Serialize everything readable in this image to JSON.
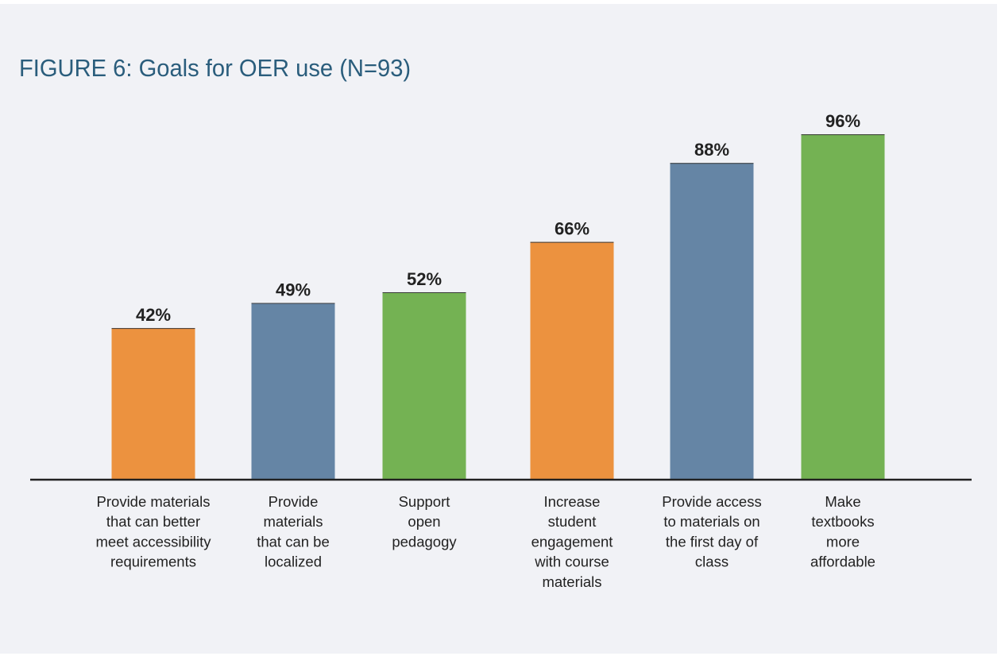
{
  "chart_data": {
    "type": "bar",
    "title": "FIGURE 6: Goals for OER use (N=93)",
    "categories": [
      [
        "Provide materials",
        "that can better",
        "meet accessibility",
        "requirements"
      ],
      [
        "Provide",
        "materials",
        "that can be",
        "localized"
      ],
      [
        "Support",
        "open",
        "pedagogy"
      ],
      [
        "Increase",
        "student",
        "engagement",
        "with course",
        "materials"
      ],
      [
        "Provide access",
        "to materials on",
        "the first day of",
        "class"
      ],
      [
        "Make",
        "textbooks",
        "more",
        "affordable"
      ]
    ],
    "values": [
      42,
      49,
      52,
      66,
      88,
      96
    ],
    "value_labels": [
      "42%",
      "49%",
      "52%",
      "66%",
      "88%",
      "96%"
    ],
    "bar_colors": [
      "#ec923f",
      "#6585a5",
      "#74b253",
      "#ec923f",
      "#6585a5",
      "#74b253"
    ],
    "ylim": [
      0,
      100
    ],
    "grid": false,
    "legend": "none"
  }
}
